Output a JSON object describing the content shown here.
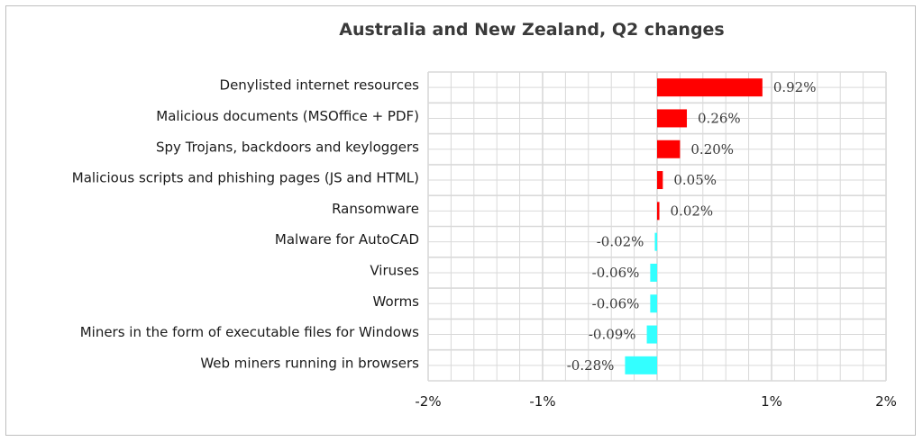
{
  "chart_data": {
    "type": "bar",
    "orientation": "horizontal",
    "title": "Australia and New Zealand, Q2 changes",
    "xlabel": "",
    "ylabel": "",
    "categories": [
      "Denylisted internet resources",
      "Malicious documents (MSOffice + PDF)",
      "Spy Trojans, backdoors and keyloggers",
      "Malicious scripts and phishing pages (JS and HTML)",
      "Ransomware",
      "Malware for AutoCAD",
      "Viruses",
      "Worms",
      "Miners in the form of executable files for Windows",
      "Web miners running in browsers"
    ],
    "values": [
      0.92,
      0.26,
      0.2,
      0.05,
      0.02,
      -0.02,
      -0.06,
      -0.06,
      -0.09,
      -0.28
    ],
    "value_labels": [
      "0.92%",
      "0.26%",
      "0.20%",
      "0.05%",
      "0.02%",
      "-0.02%",
      "-0.06%",
      "-0.06%",
      "-0.09%",
      "-0.28%"
    ],
    "xlim": [
      -2,
      2
    ],
    "xticks": [
      -2,
      -1,
      1,
      2
    ],
    "xtick_labels": [
      "-2%",
      "-1%",
      "1%",
      "2%"
    ],
    "grid": true,
    "legend": "none",
    "colors": {
      "positive": "#ff0000",
      "negative": "#33ffff",
      "grid": "#d9d9d9"
    }
  }
}
